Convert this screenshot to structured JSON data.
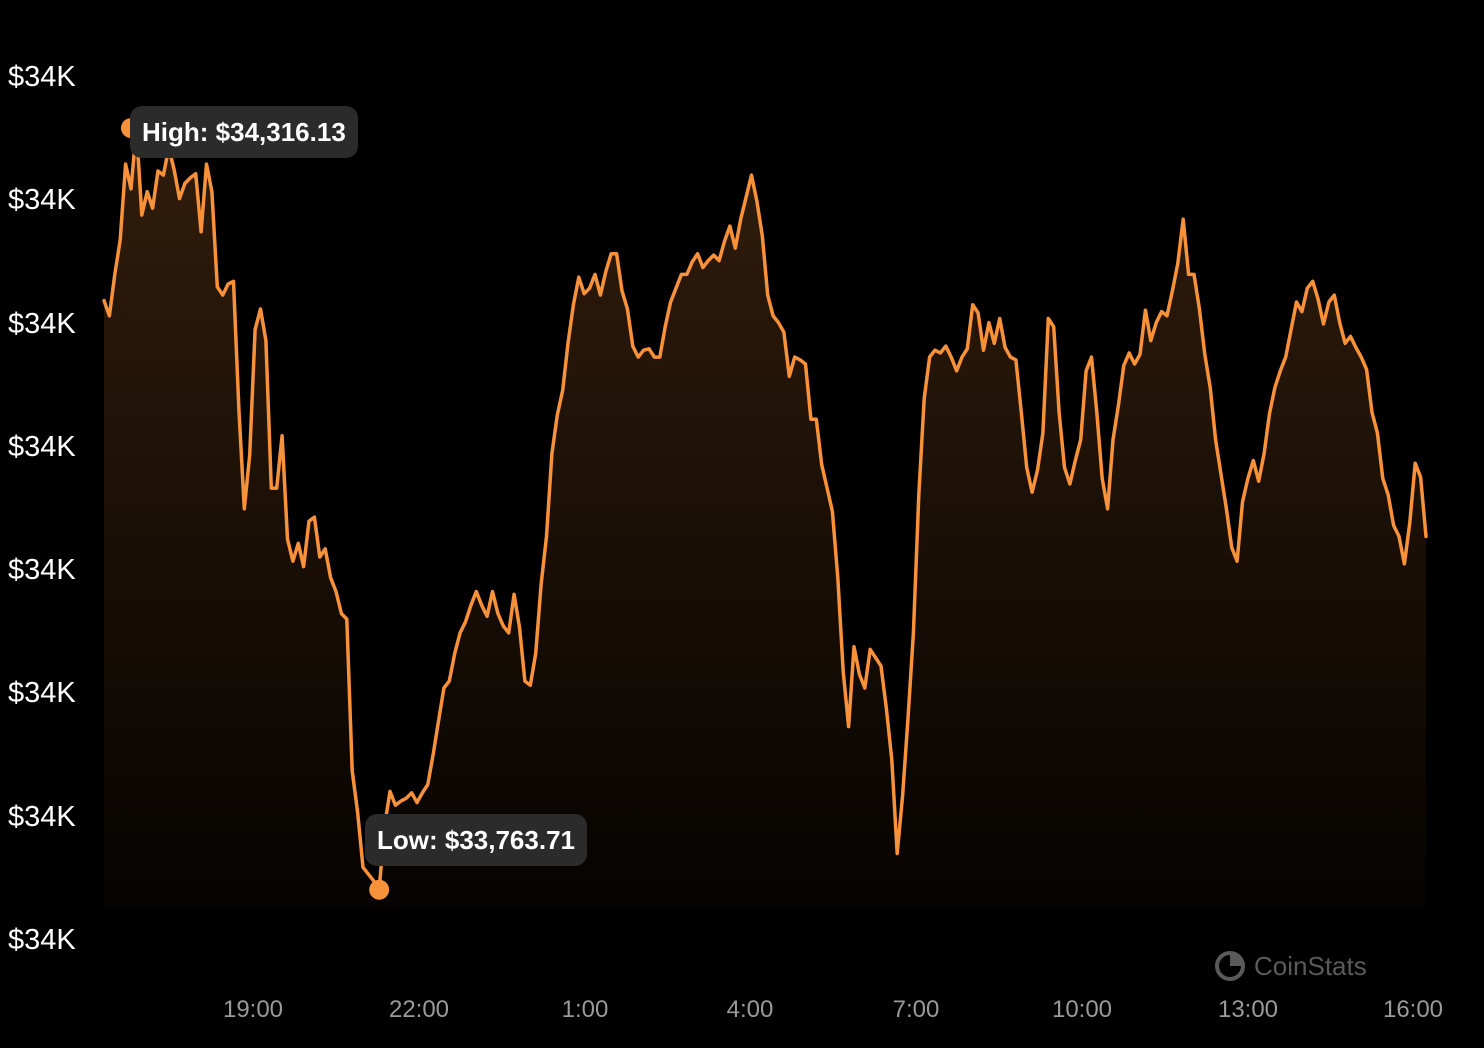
{
  "chart_data": {
    "type": "area",
    "title": "",
    "xlabel": "",
    "ylabel": "",
    "x_tick_labels": [
      "19:00",
      "22:00",
      "1:00",
      "4:00",
      "7:00",
      "10:00",
      "13:00",
      "16:00"
    ],
    "y_tick_labels": [
      "$34K",
      "$34K",
      "$34K",
      "$34K",
      "$34K",
      "$34K",
      "$34K",
      "$34K"
    ],
    "ylim": [
      33720,
      34380
    ],
    "annotations": {
      "high": {
        "label": "High: $34,316.13",
        "value": 34316.13,
        "index": 5
      },
      "low": {
        "label": "Low: $33,763.71",
        "value": 33763.71,
        "index": 51
      }
    },
    "line_color": "#f7913a",
    "point_hours": 0.1,
    "series": [
      {
        "values": [
          34191,
          34180,
          34210,
          34235,
          34290,
          34272,
          34316,
          34253,
          34270,
          34258,
          34285,
          34282,
          34302,
          34286,
          34265,
          34276,
          34280,
          34283,
          34241,
          34290,
          34270,
          34201,
          34195,
          34203,
          34205,
          34112,
          34040,
          34079,
          34170,
          34185,
          34162,
          34055,
          34055,
          34093,
          34018,
          34002,
          34015,
          33998,
          34031,
          34034,
          34005,
          34011,
          33990,
          33980,
          33964,
          33960,
          33850,
          33820,
          33780,
          33775,
          33770,
          33764,
          33810,
          33835,
          33825,
          33828,
          33830,
          33834,
          33827,
          33834,
          33840,
          33862,
          33886,
          33910,
          33915,
          33935,
          33950,
          33958,
          33970,
          33980,
          33970,
          33962,
          33980,
          33964,
          33955,
          33950,
          33978,
          33954,
          33915,
          33912,
          33935,
          33985,
          34020,
          34080,
          34108,
          34126,
          34160,
          34188,
          34208,
          34196,
          34200,
          34210,
          34195,
          34212,
          34225,
          34225,
          34198,
          34185,
          34158,
          34150,
          34155,
          34156,
          34150,
          34150,
          34172,
          34190,
          34200,
          34210,
          34210,
          34219,
          34225,
          34215,
          34220,
          34224,
          34220,
          34234,
          34245,
          34229,
          34250,
          34266,
          34282,
          34263,
          34238,
          34195,
          34180,
          34175,
          34168,
          34136,
          34150,
          34148,
          34145,
          34105,
          34105,
          34072,
          34055,
          34038,
          33990,
          33922,
          33882,
          33940,
          33920,
          33910,
          33938,
          33932,
          33926,
          33895,
          33858,
          33790,
          33832,
          33888,
          33950,
          34050,
          34120,
          34150,
          34155,
          34153,
          34158,
          34150,
          34140,
          34150,
          34156,
          34188,
          34182,
          34155,
          34175,
          34160,
          34178,
          34157,
          34150,
          34148,
          34110,
          34070,
          34052,
          34068,
          34095,
          34178,
          34172,
          34110,
          34070,
          34058,
          34075,
          34090,
          34140,
          34150,
          34110,
          34062,
          34040,
          34090,
          34115,
          34144,
          34153,
          34145,
          34152,
          34184,
          34162,
          34175,
          34183,
          34180,
          34198,
          34218,
          34250,
          34210,
          34210,
          34185,
          34152,
          34128,
          34090,
          34065,
          34040,
          34012,
          34002,
          34045,
          34062,
          34075,
          34060,
          34080,
          34109,
          34128,
          34140,
          34150,
          34170,
          34190,
          34183,
          34200,
          34205,
          34192,
          34174,
          34190,
          34195,
          34175,
          34160,
          34165,
          34157,
          34150,
          34141,
          34110,
          34095,
          34062,
          34050,
          34028,
          34020,
          34000,
          34030,
          34073,
          34063,
          34020
        ]
      }
    ]
  },
  "watermark": {
    "text": "CoinStats",
    "icon": "coinstats-logo-icon"
  }
}
